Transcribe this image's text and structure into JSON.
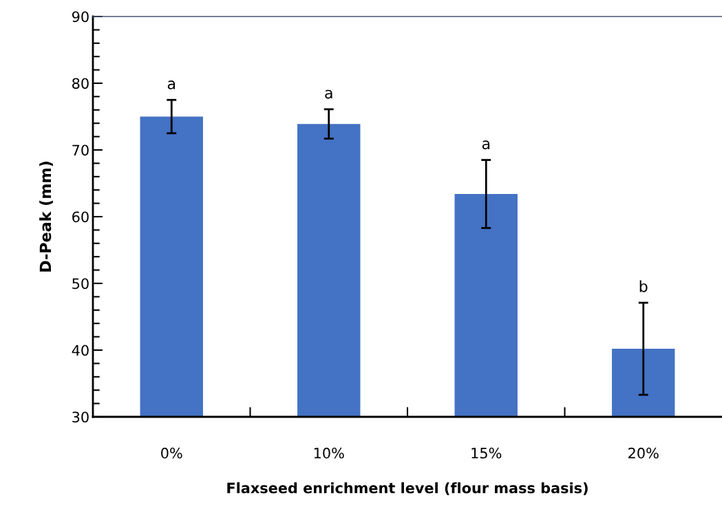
{
  "chart_data": {
    "type": "bar",
    "xlabel": "Flaxseed enrichment level (flour mass basis)",
    "ylabel": "D-Peak (mm)",
    "categories": [
      "0%",
      "10%",
      "15%",
      "20%"
    ],
    "values": [
      75.0,
      73.9,
      63.4,
      40.2
    ],
    "errors": [
      2.5,
      2.2,
      5.1,
      6.9
    ],
    "color": "#4472c4",
    "ylim": [
      30,
      90
    ],
    "yticks": [
      30,
      40,
      50,
      60,
      70,
      80,
      90
    ],
    "grid": false,
    "annotations": [
      "a",
      "a",
      "a",
      "b"
    ]
  }
}
